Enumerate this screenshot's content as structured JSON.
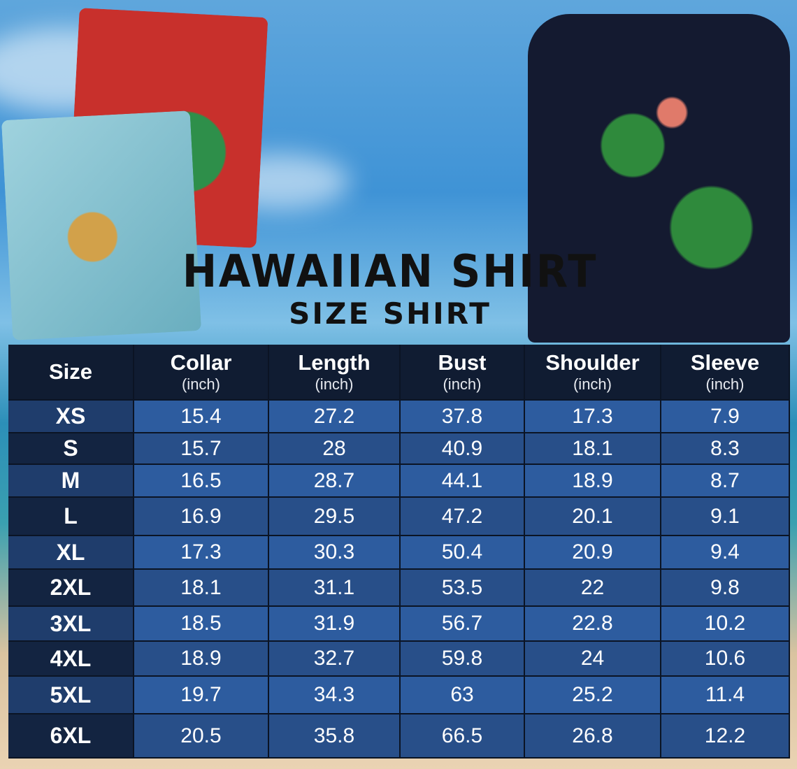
{
  "title": "HAWAIIAN SHIRT",
  "subtitle": "SIZE SHIRT",
  "colors": {
    "header": "#101c32",
    "row_light": "#2d5c9f",
    "row_dark": "#284f89",
    "size_light": "#1f3d6c",
    "size_dark": "#132441"
  },
  "table": {
    "columns": [
      {
        "label": "Size",
        "unit": ""
      },
      {
        "label": "Collar",
        "unit": "(inch)"
      },
      {
        "label": "Length",
        "unit": "(inch)"
      },
      {
        "label": "Bust",
        "unit": "(inch)"
      },
      {
        "label": "Shoulder",
        "unit": "(inch)"
      },
      {
        "label": "Sleeve",
        "unit": "(inch)"
      }
    ],
    "rows": [
      [
        "XS",
        "15.4",
        "27.2",
        "37.8",
        "17.3",
        "7.9"
      ],
      [
        "S",
        "15.7",
        "28",
        "40.9",
        "18.1",
        "8.3"
      ],
      [
        "M",
        "16.5",
        "28.7",
        "44.1",
        "18.9",
        "8.7"
      ],
      [
        "L",
        "16.9",
        "29.5",
        "47.2",
        "20.1",
        "9.1"
      ],
      [
        "XL",
        "17.3",
        "30.3",
        "50.4",
        "20.9",
        "9.4"
      ],
      [
        "2XL",
        "18.1",
        "31.1",
        "53.5",
        "22",
        "9.8"
      ],
      [
        "3XL",
        "18.5",
        "31.9",
        "56.7",
        "22.8",
        "10.2"
      ],
      [
        "4XL",
        "18.9",
        "32.7",
        "59.8",
        "24",
        "10.6"
      ],
      [
        "5XL",
        "19.7",
        "34.3",
        "63",
        "25.2",
        "11.4"
      ],
      [
        "6XL",
        "20.5",
        "35.8",
        "66.5",
        "26.8",
        "12.2"
      ]
    ]
  }
}
